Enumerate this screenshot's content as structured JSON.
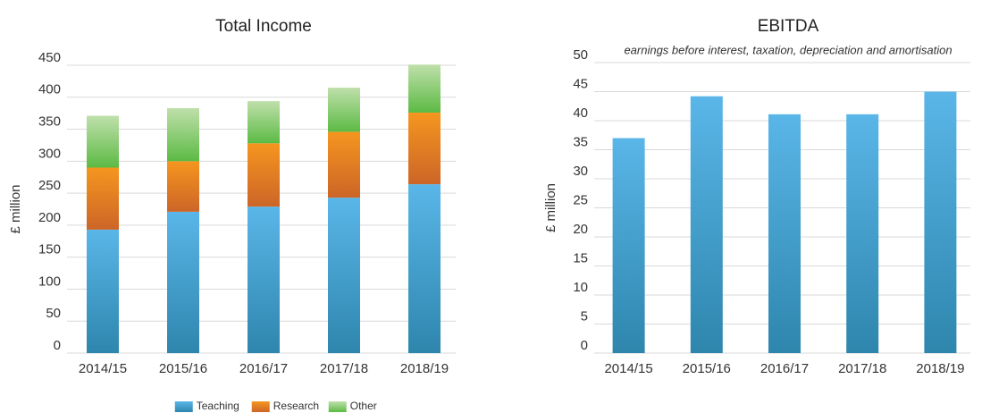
{
  "chart_data": [
    {
      "type": "bar",
      "stacked": true,
      "title": "Total Income",
      "y_label": "£ million",
      "categories": [
        "2014/15",
        "2015/16",
        "2016/17",
        "2017/18",
        "2018/19"
      ],
      "series": [
        {
          "name": "Teaching",
          "color": [
            "#5ab6e8",
            "#2e86ad"
          ],
          "values": [
            193,
            221,
            229,
            243,
            264
          ]
        },
        {
          "name": "Research",
          "color": [
            "#f5961f",
            "#cc6527"
          ],
          "values": [
            97,
            79,
            99,
            103,
            112
          ]
        },
        {
          "name": "Other",
          "color": [
            "#bfe0ab",
            "#5cba44"
          ],
          "values": [
            81,
            83,
            66,
            69,
            75
          ]
        }
      ],
      "ylim": [
        0,
        450
      ],
      "yticks": [
        0,
        50,
        100,
        150,
        200,
        250,
        300,
        350,
        400,
        450
      ],
      "grid": true,
      "legend": "bottom"
    },
    {
      "type": "bar",
      "title": "EBITDA",
      "subtitle": "earnings before interest, taxation, depreciation and amortisation",
      "y_label": "£ million",
      "categories": [
        "2014/15",
        "2015/16",
        "2016/17",
        "2017/18",
        "2018/19"
      ],
      "values": [
        37,
        44.2,
        41.1,
        41.1,
        45
      ],
      "color": [
        "#5ab6e8",
        "#2e86ad"
      ],
      "ylim": [
        0,
        50
      ],
      "yticks": [
        0,
        5,
        10,
        15,
        20,
        25,
        30,
        35,
        40,
        45,
        50
      ],
      "grid": true
    }
  ]
}
